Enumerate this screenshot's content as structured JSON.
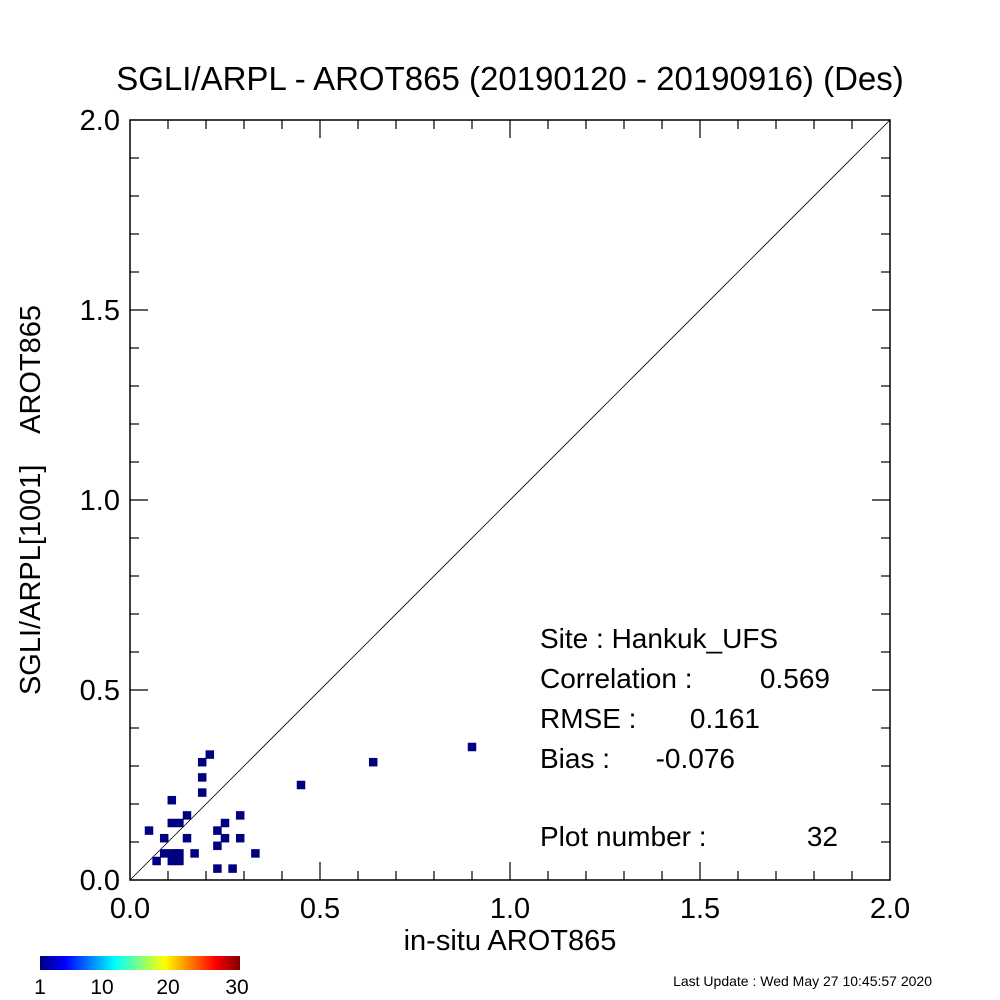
{
  "chart_data": {
    "type": "scatter",
    "title": "SGLI/ARPL - AROT865 (20190120 - 20190916) (Des)",
    "xlabel": "in-situ AROT865",
    "ylabel": "SGLI/ARPL[1001]    AROT865",
    "xlim": [
      0.0,
      2.0
    ],
    "ylim": [
      0.0,
      2.0
    ],
    "x_ticks": [
      "0.0",
      "0.5",
      "1.0",
      "1.5",
      "2.0"
    ],
    "y_ticks": [
      "0.0",
      "0.5",
      "1.0",
      "1.5",
      "2.0"
    ],
    "one_to_one_line": true,
    "grid": false,
    "point_color": "#000080",
    "points": [
      {
        "x": 0.05,
        "y": 0.13
      },
      {
        "x": 0.07,
        "y": 0.05
      },
      {
        "x": 0.09,
        "y": 0.11
      },
      {
        "x": 0.09,
        "y": 0.07
      },
      {
        "x": 0.11,
        "y": 0.21
      },
      {
        "x": 0.11,
        "y": 0.15
      },
      {
        "x": 0.11,
        "y": 0.07
      },
      {
        "x": 0.11,
        "y": 0.05
      },
      {
        "x": 0.12,
        "y": 0.07
      },
      {
        "x": 0.13,
        "y": 0.15
      },
      {
        "x": 0.13,
        "y": 0.07
      },
      {
        "x": 0.13,
        "y": 0.05
      },
      {
        "x": 0.15,
        "y": 0.17
      },
      {
        "x": 0.15,
        "y": 0.11
      },
      {
        "x": 0.17,
        "y": 0.07
      },
      {
        "x": 0.19,
        "y": 0.31
      },
      {
        "x": 0.19,
        "y": 0.27
      },
      {
        "x": 0.19,
        "y": 0.23
      },
      {
        "x": 0.21,
        "y": 0.33
      },
      {
        "x": 0.23,
        "y": 0.13
      },
      {
        "x": 0.23,
        "y": 0.09
      },
      {
        "x": 0.23,
        "y": 0.03
      },
      {
        "x": 0.25,
        "y": 0.15
      },
      {
        "x": 0.25,
        "y": 0.11
      },
      {
        "x": 0.27,
        "y": 0.03
      },
      {
        "x": 0.29,
        "y": 0.17
      },
      {
        "x": 0.29,
        "y": 0.11
      },
      {
        "x": 0.33,
        "y": 0.07
      },
      {
        "x": 0.45,
        "y": 0.25
      },
      {
        "x": 0.64,
        "y": 0.31
      },
      {
        "x": 0.9,
        "y": 0.35
      }
    ],
    "stats": {
      "site_label": "Site : Hankuk_UFS",
      "correlation_label": "Correlation :",
      "correlation_value": "0.569",
      "rmse_label": "RMSE :",
      "rmse_value": "0.161",
      "bias_label": "Bias :",
      "bias_value": "-0.076",
      "plot_number_label": "Plot number :",
      "plot_number_value": "32"
    },
    "colorbar": {
      "ticks": [
        "1",
        "10",
        "20",
        "30"
      ],
      "colors": [
        "#00007f",
        "#0000ff",
        "#007fff",
        "#00ffff",
        "#7fff7f",
        "#ffff00",
        "#ff7f00",
        "#ff0000",
        "#7f0000"
      ]
    }
  },
  "footer": {
    "last_update": "Last Update : Wed May 27 10:45:57 2020"
  }
}
